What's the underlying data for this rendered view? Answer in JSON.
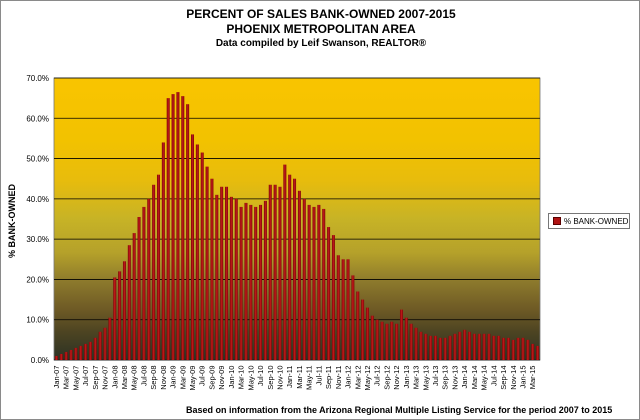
{
  "chart_data": {
    "type": "bar",
    "title": "PERCENT OF SALES BANK-OWNED 2007-2015",
    "subtitle": "PHOENIX METROPOLITAN AREA",
    "credit": "Data compiled by Leif Swanson, REALTOR®",
    "ylabel": "% BANK-OWNED",
    "xlabel": "",
    "footnote": "Based on information from the Arizona Regional Multiple Listing Service for the period 2007 to 2015",
    "ylim": [
      0,
      70
    ],
    "y_ticks": [
      "0.0%",
      "10.0%",
      "20.0%",
      "30.0%",
      "40.0%",
      "50.0%",
      "60.0%",
      "70.0%"
    ],
    "legend": {
      "position": "right",
      "entries": [
        "% BANK-OWNED"
      ]
    },
    "series_color": "#b01212",
    "categories": [
      "Jan-07",
      "Feb-07",
      "Mar-07",
      "Apr-07",
      "May-07",
      "Jun-07",
      "Jul-07",
      "Aug-07",
      "Sep-07",
      "Oct-07",
      "Nov-07",
      "Dec-07",
      "Jan-08",
      "Feb-08",
      "Mar-08",
      "Apr-08",
      "May-08",
      "Jun-08",
      "Jul-08",
      "Aug-08",
      "Sep-08",
      "Oct-08",
      "Nov-08",
      "Dec-08",
      "Jan-09",
      "Feb-09",
      "Mar-09",
      "Apr-09",
      "May-09",
      "Jun-09",
      "Jul-09",
      "Aug-09",
      "Sep-09",
      "Oct-09",
      "Nov-09",
      "Dec-09",
      "Jan-10",
      "Feb-10",
      "Mar-10",
      "Apr-10",
      "May-10",
      "Jun-10",
      "Jul-10",
      "Aug-10",
      "Sep-10",
      "Oct-10",
      "Nov-10",
      "Dec-10",
      "Jan-11",
      "Feb-11",
      "Mar-11",
      "Apr-11",
      "May-11",
      "Jun-11",
      "Jul-11",
      "Aug-11",
      "Sep-11",
      "Oct-11",
      "Nov-11",
      "Dec-11",
      "Jan-12",
      "Feb-12",
      "Mar-12",
      "Apr-12",
      "May-12",
      "Jun-12",
      "Jul-12",
      "Aug-12",
      "Sep-12",
      "Oct-12",
      "Nov-12",
      "Dec-12",
      "Jan-13",
      "Feb-13",
      "Mar-13",
      "Apr-13",
      "May-13",
      "Jun-13",
      "Jul-13",
      "Aug-13",
      "Sep-13",
      "Oct-13",
      "Nov-13",
      "Dec-13",
      "Jan-14",
      "Feb-14",
      "Mar-14",
      "Apr-14",
      "May-14",
      "Jun-14",
      "Jul-14",
      "Aug-14",
      "Sep-14",
      "Oct-14",
      "Nov-14",
      "Dec-14",
      "Jan-15",
      "Feb-15",
      "Mar-15",
      "Apr-15"
    ],
    "x_tick_labels": [
      "Jan-07",
      "Mar-07",
      "May-07",
      "Jul-07",
      "Sep-07",
      "Nov-07",
      "Jan-08",
      "Mar-08",
      "May-08",
      "Jul-08",
      "Sep-08",
      "Nov-08",
      "Jan-09",
      "Mar-09",
      "May-09",
      "Jul-09",
      "Sep-09",
      "Nov-09",
      "Jan-10",
      "Mar-10",
      "May-10",
      "Jul-10",
      "Sep-10",
      "Nov-10",
      "Jan-11",
      "Mar-11",
      "May-11",
      "Jul-11",
      "Sep-11",
      "Nov-11",
      "Jan-12",
      "Mar-12",
      "May-12",
      "Jul-12",
      "Sep-12",
      "Nov-12",
      "Jan-13",
      "Mar-13",
      "May-13",
      "Jul-13",
      "Sep-13",
      "Nov-13",
      "Jan-14",
      "Mar-14",
      "May-14",
      "Jul-14",
      "Sep-14",
      "Nov-14",
      "Jan-15",
      "Mar-15"
    ],
    "series": [
      {
        "name": "% BANK-OWNED",
        "values": [
          1.0,
          1.5,
          2.0,
          2.5,
          3.0,
          3.5,
          4.0,
          4.5,
          5.5,
          7.0,
          8.0,
          10.5,
          20.5,
          22.0,
          24.5,
          28.5,
          31.5,
          35.5,
          38.0,
          40.0,
          43.5,
          46.0,
          54.0,
          65.0,
          66.0,
          66.5,
          65.5,
          63.5,
          56.0,
          53.5,
          51.5,
          48.0,
          45.0,
          41.0,
          43.0,
          43.0,
          40.5,
          40.0,
          38.0,
          39.0,
          38.5,
          38.0,
          38.5,
          39.5,
          43.5,
          43.5,
          43.0,
          48.5,
          46.0,
          45.0,
          42.0,
          40.0,
          38.5,
          38.0,
          38.5,
          37.5,
          33.0,
          31.0,
          26.0,
          25.0,
          25.0,
          21.0,
          17.0,
          15.0,
          13.0,
          11.0,
          10.0,
          9.5,
          9.0,
          9.5,
          9.0,
          12.5,
          10.5,
          9.0,
          8.0,
          7.0,
          6.5,
          6.0,
          6.0,
          5.5,
          5.5,
          6.0,
          6.5,
          7.0,
          7.5,
          7.0,
          6.5,
          6.5,
          6.5,
          6.5,
          6.0,
          6.0,
          5.5,
          5.5,
          5.0,
          5.5,
          5.5,
          5.0,
          4.0,
          3.5
        ]
      }
    ]
  }
}
